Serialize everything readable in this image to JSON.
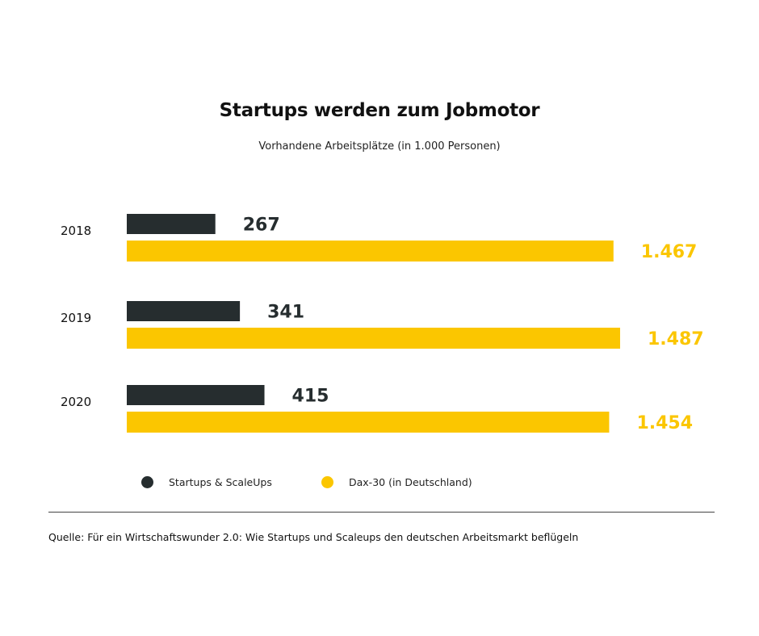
{
  "chart_data": {
    "type": "bar",
    "orientation": "horizontal",
    "title": "Startups werden zum Jobmotor",
    "subtitle": "Vorhandene Arbeitsplätze (in 1.000 Personen)",
    "categories": [
      "2018",
      "2019",
      "2020"
    ],
    "series": [
      {
        "name": "Startups & ScaleUps",
        "color": "#262d2f",
        "values": [
          267,
          341,
          415
        ],
        "labels": [
          "267",
          "341",
          "415"
        ]
      },
      {
        "name": "Dax-30 (in Deutschland)",
        "color": "#fbc600",
        "values": [
          1467,
          1487,
          1454
        ],
        "labels": [
          "1.467",
          "1.487",
          "1.454"
        ]
      }
    ],
    "xlim": [
      0,
      1487
    ],
    "grid": false,
    "legend_position": "bottom"
  },
  "source": "Quelle: Für ein Wirtschaftswunder 2.0: Wie Startups und Scaleups den deutschen Arbeitsmarkt beflügeln"
}
